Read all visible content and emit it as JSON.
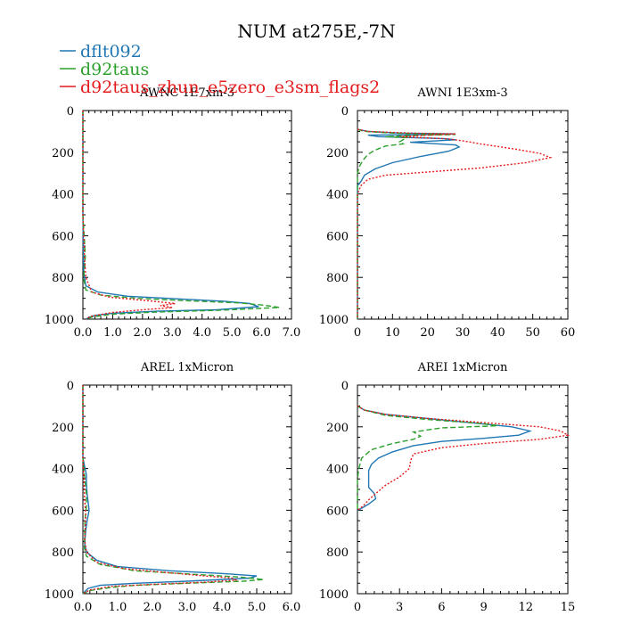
{
  "figure_title": "NUM at275E,-7N",
  "legend": [
    {
      "label": "dflt092",
      "color": "#1f77b4"
    },
    {
      "label": "d92taus",
      "color": "#2ca02c"
    },
    {
      "label": "d92taus_zhun_e5zero_e3sm_flags2",
      "color": "#e41a1c"
    }
  ],
  "chart_data": [
    {
      "type": "line",
      "title": "AWNC  1E7xm-3",
      "xlim": [
        0,
        7
      ],
      "xticks": [
        "0.0",
        "1.0",
        "2.0",
        "3.0",
        "4.0",
        "5.0",
        "6.0",
        "7.0"
      ],
      "ylim": [
        0,
        1000
      ],
      "yticks": [
        "0",
        "200",
        "400",
        "600",
        "800",
        "1000"
      ],
      "y_inverted": true,
      "series": [
        {
          "name": "dflt092",
          "style": "solid",
          "points": [
            [
              0,
              0
            ],
            [
              0,
              500
            ],
            [
              0.02,
              700
            ],
            [
              0.03,
              780
            ],
            [
              0.1,
              840
            ],
            [
              0.5,
              870
            ],
            [
              1.5,
              890
            ],
            [
              3.5,
              905
            ],
            [
              4.8,
              915
            ],
            [
              5.6,
              925
            ],
            [
              5.9,
              940
            ],
            [
              4.5,
              955
            ],
            [
              2.5,
              962
            ],
            [
              1.0,
              972
            ],
            [
              0.4,
              982
            ],
            [
              0.2,
              992
            ],
            [
              0.1,
              1000
            ]
          ]
        },
        {
          "name": "d92taus",
          "style": "dashed",
          "points": [
            [
              0,
              0
            ],
            [
              0,
              500
            ],
            [
              0.05,
              620
            ],
            [
              0.08,
              700
            ],
            [
              0.05,
              760
            ],
            [
              0.02,
              800
            ],
            [
              0.1,
              860
            ],
            [
              0.6,
              885
            ],
            [
              1.8,
              900
            ],
            [
              3.5,
              912
            ],
            [
              5.2,
              922
            ],
            [
              6.0,
              932
            ],
            [
              6.6,
              944
            ],
            [
              4.5,
              958
            ],
            [
              2.5,
              966
            ],
            [
              1.0,
              976
            ],
            [
              0.3,
              990
            ],
            [
              0.1,
              1000
            ]
          ]
        },
        {
          "name": "d92taus_zhun_e5zero_e3sm_flags2",
          "style": "dotted",
          "points": [
            [
              0,
              0
            ],
            [
              0,
              500
            ],
            [
              0.05,
              700
            ],
            [
              0.1,
              800
            ],
            [
              0.3,
              870
            ],
            [
              0.9,
              895
            ],
            [
              2.2,
              912
            ],
            [
              3.1,
              925
            ],
            [
              2.6,
              935
            ],
            [
              3.0,
              945
            ],
            [
              2.0,
              955
            ],
            [
              1.0,
              968
            ],
            [
              0.3,
              985
            ],
            [
              0.1,
              1000
            ]
          ]
        }
      ]
    },
    {
      "type": "line",
      "title": "AWNI  1E3xm-3",
      "xlim": [
        0,
        60
      ],
      "xticks": [
        "0",
        "10",
        "20",
        "30",
        "40",
        "50",
        "60"
      ],
      "ylim": [
        0,
        1000
      ],
      "yticks": [
        "0",
        "200",
        "400",
        "600",
        "800",
        "1000"
      ],
      "y_inverted": true,
      "series": [
        {
          "name": "dflt092",
          "style": "solid",
          "points": [
            [
              0,
              90
            ],
            [
              3,
              100
            ],
            [
              12,
              108
            ],
            [
              28,
              112
            ],
            [
              20,
              115
            ],
            [
              3,
              118
            ],
            [
              6,
              125
            ],
            [
              25,
              135
            ],
            [
              28,
              140
            ],
            [
              15,
              152
            ],
            [
              28,
              165
            ],
            [
              29,
              175
            ],
            [
              26,
              195
            ],
            [
              18,
              220
            ],
            [
              10,
              250
            ],
            [
              5,
              280
            ],
            [
              2,
              310
            ],
            [
              1,
              340
            ],
            [
              0,
              360
            ],
            [
              0,
              1000
            ]
          ]
        },
        {
          "name": "d92taus",
          "style": "dashed",
          "points": [
            [
              0,
              90
            ],
            [
              2,
              100
            ],
            [
              10,
              108
            ],
            [
              28,
              115
            ],
            [
              15,
              120
            ],
            [
              8,
              125
            ],
            [
              14,
              130
            ],
            [
              12,
              150
            ],
            [
              13,
              160
            ],
            [
              8,
              170
            ],
            [
              5,
              190
            ],
            [
              3,
              210
            ],
            [
              1.5,
              240
            ],
            [
              0.5,
              270
            ],
            [
              0,
              300
            ],
            [
              0,
              1000
            ]
          ]
        },
        {
          "name": "d92taus_zhun_e5zero_e3sm_flags2",
          "style": "dotted",
          "points": [
            [
              0,
              90
            ],
            [
              3,
              100
            ],
            [
              15,
              108
            ],
            [
              28,
              112
            ],
            [
              20,
              118
            ],
            [
              12,
              125
            ],
            [
              25,
              135
            ],
            [
              30,
              145
            ],
            [
              35,
              160
            ],
            [
              45,
              185
            ],
            [
              52,
              205
            ],
            [
              55,
              225
            ],
            [
              48,
              250
            ],
            [
              35,
              275
            ],
            [
              20,
              295
            ],
            [
              8,
              310
            ],
            [
              3,
              330
            ],
            [
              1,
              360
            ],
            [
              0,
              400
            ],
            [
              0,
              1000
            ]
          ]
        }
      ]
    },
    {
      "type": "line",
      "title": "AREL  1xMicron",
      "xlim": [
        0,
        6
      ],
      "xticks": [
        "0.0",
        "1.0",
        "2.0",
        "3.0",
        "4.0",
        "5.0",
        "6.0"
      ],
      "ylim": [
        0,
        1000
      ],
      "yticks": [
        "0",
        "200",
        "400",
        "600",
        "800",
        "1000"
      ],
      "y_inverted": true,
      "series": [
        {
          "name": "dflt092",
          "style": "solid",
          "points": [
            [
              0,
              0
            ],
            [
              0,
              350
            ],
            [
              0.1,
              430
            ],
            [
              0.1,
              470
            ],
            [
              0.12,
              520
            ],
            [
              0.15,
              560
            ],
            [
              0.18,
              600
            ],
            [
              0.12,
              650
            ],
            [
              0.08,
              700
            ],
            [
              0.05,
              760
            ],
            [
              0.1,
              800
            ],
            [
              0.4,
              840
            ],
            [
              1.0,
              870
            ],
            [
              2.5,
              890
            ],
            [
              4.2,
              905
            ],
            [
              5.0,
              915
            ],
            [
              4.8,
              925
            ],
            [
              3.0,
              940
            ],
            [
              1.5,
              950
            ],
            [
              0.5,
              960
            ],
            [
              0.15,
              975
            ],
            [
              0.05,
              990
            ],
            [
              0,
              1000
            ]
          ]
        },
        {
          "name": "d92taus",
          "style": "dashed",
          "points": [
            [
              0,
              0
            ],
            [
              0,
              350
            ],
            [
              0.05,
              440
            ],
            [
              0.1,
              520
            ],
            [
              0.1,
              580
            ],
            [
              0.06,
              650
            ],
            [
              0.05,
              720
            ],
            [
              0.04,
              780
            ],
            [
              0.1,
              820
            ],
            [
              0.5,
              860
            ],
            [
              1.5,
              890
            ],
            [
              3.0,
              905
            ],
            [
              4.5,
              920
            ],
            [
              5.2,
              932
            ],
            [
              4.6,
              940
            ],
            [
              3.0,
              950
            ],
            [
              1.5,
              960
            ],
            [
              0.8,
              970
            ],
            [
              0.2,
              985
            ],
            [
              0,
              1000
            ]
          ]
        },
        {
          "name": "d92taus_zhun_e5zero_e3sm_flags2",
          "style": "dotted",
          "points": [
            [
              0,
              0
            ],
            [
              0,
              350
            ],
            [
              0.03,
              450
            ],
            [
              0.05,
              550
            ],
            [
              0.08,
              620
            ],
            [
              0.07,
              680
            ],
            [
              0.05,
              740
            ],
            [
              0.1,
              800
            ],
            [
              0.4,
              850
            ],
            [
              1.2,
              880
            ],
            [
              2.5,
              900
            ],
            [
              3.5,
              915
            ],
            [
              4.3,
              925
            ],
            [
              4.4,
              935
            ],
            [
              3.5,
              945
            ],
            [
              2.0,
              955
            ],
            [
              0.8,
              965
            ],
            [
              0.2,
              982
            ],
            [
              0,
              1000
            ]
          ]
        }
      ]
    },
    {
      "type": "line",
      "title": "AREI  1xMicron",
      "xlim": [
        0,
        15
      ],
      "xticks": [
        "0",
        "3",
        "6",
        "9",
        "12",
        "15"
      ],
      "ylim": [
        0,
        1000
      ],
      "yticks": [
        "0",
        "200",
        "400",
        "600",
        "800",
        "1000"
      ],
      "y_inverted": true,
      "series": [
        {
          "name": "dflt092",
          "style": "solid",
          "points": [
            [
              0,
              100
            ],
            [
              0.5,
              120
            ],
            [
              2,
              140
            ],
            [
              5,
              160
            ],
            [
              8,
              180
            ],
            [
              11,
              200
            ],
            [
              12.3,
              220
            ],
            [
              11.5,
              240
            ],
            [
              9,
              255
            ],
            [
              6,
              270
            ],
            [
              4,
              290
            ],
            [
              2.5,
              320
            ],
            [
              1.5,
              350
            ],
            [
              1,
              380
            ],
            [
              0.8,
              410
            ],
            [
              0.8,
              450
            ],
            [
              0.8,
              490
            ],
            [
              1.2,
              520
            ],
            [
              1.3,
              545
            ],
            [
              0.8,
              570
            ],
            [
              0.3,
              590
            ],
            [
              0,
              600
            ]
          ]
        },
        {
          "name": "d92taus",
          "style": "dashed",
          "points": [
            [
              0,
              100
            ],
            [
              0.5,
              120
            ],
            [
              2,
              145
            ],
            [
              5,
              165
            ],
            [
              9,
              185
            ],
            [
              10,
              195
            ],
            [
              6,
              205
            ],
            [
              4,
              225
            ],
            [
              4.5,
              245
            ],
            [
              4,
              260
            ],
            [
              2.5,
              280
            ],
            [
              1,
              310
            ],
            [
              0.3,
              350
            ],
            [
              0.1,
              400
            ],
            [
              0,
              450
            ],
            [
              0,
              600
            ]
          ]
        },
        {
          "name": "d92taus_zhun_e5zero_e3sm_flags2",
          "style": "dotted",
          "points": [
            [
              0,
              100
            ],
            [
              0.5,
              120
            ],
            [
              2,
              140
            ],
            [
              5,
              160
            ],
            [
              9,
              180
            ],
            [
              13,
              200
            ],
            [
              14.5,
              220
            ],
            [
              15,
              240
            ],
            [
              13,
              260
            ],
            [
              9,
              280
            ],
            [
              6,
              300
            ],
            [
              4,
              330
            ],
            [
              3.8,
              360
            ],
            [
              3.7,
              400
            ],
            [
              3,
              440
            ],
            [
              2,
              480
            ],
            [
              1.3,
              520
            ],
            [
              0.8,
              550
            ],
            [
              0.4,
              580
            ],
            [
              0,
              600
            ]
          ]
        }
      ]
    }
  ]
}
